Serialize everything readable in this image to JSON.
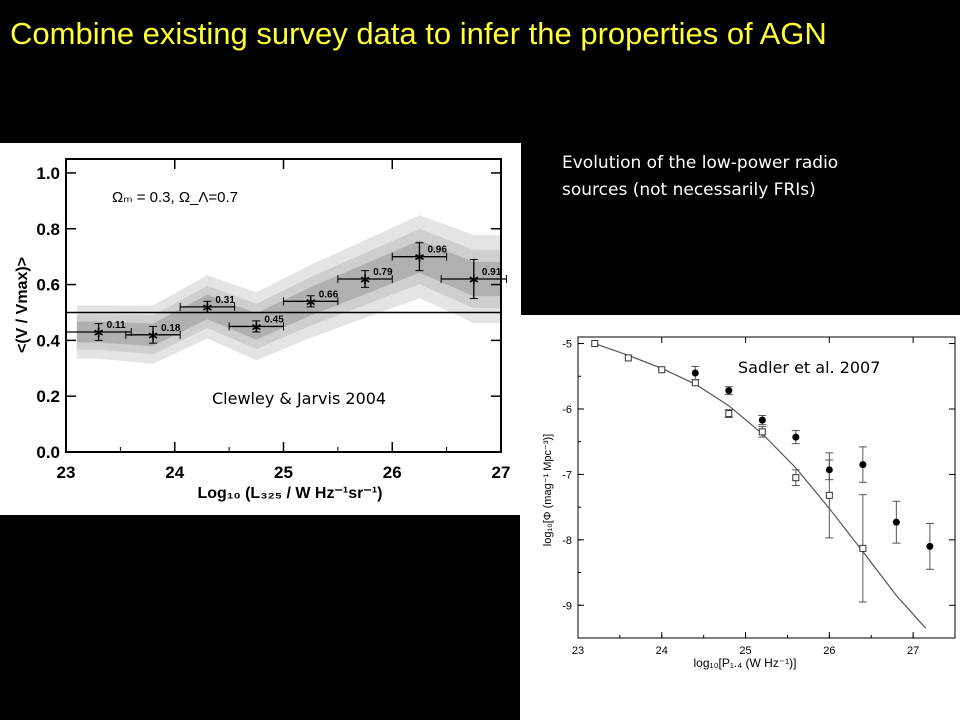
{
  "title": "Combine existing survey data to infer the properties of AGN",
  "description": "Evolution of the low-power radio sources (not necessarily FRIs)",
  "chart_data": [
    {
      "type": "line",
      "id": "left",
      "credit": "Clewley & Jarvis 2004",
      "xlabel": "Log₁₀ (L₃₂₅ / W Hz⁻¹sr⁻¹)",
      "ylabel": "<(V / Vmax)>",
      "annotation": "Ωₘ = 0.3, Ω_Λ=0.7",
      "xlim": [
        23,
        27
      ],
      "ylim": [
        0,
        1.05
      ],
      "xticks": [
        "23",
        "24",
        "25",
        "26",
        "27"
      ],
      "yticks": [
        "0.0",
        "0.2",
        "0.4",
        "0.6",
        "0.8",
        "1.0"
      ],
      "reference_line": 0.5,
      "points": [
        {
          "x": 23.3,
          "y": 0.43,
          "xerr": 0.3,
          "yerr": 0.03,
          "label": "0.11"
        },
        {
          "x": 23.8,
          "y": 0.42,
          "xerr": 0.25,
          "yerr": 0.03,
          "label": "0.18"
        },
        {
          "x": 24.3,
          "y": 0.52,
          "xerr": 0.25,
          "yerr": 0.02,
          "label": "0.31"
        },
        {
          "x": 24.75,
          "y": 0.45,
          "xerr": 0.25,
          "yerr": 0.02,
          "label": "0.45"
        },
        {
          "x": 25.25,
          "y": 0.54,
          "xerr": 0.25,
          "yerr": 0.02,
          "label": "0.66"
        },
        {
          "x": 25.75,
          "y": 0.62,
          "xerr": 0.25,
          "yerr": 0.03,
          "label": "0.79"
        },
        {
          "x": 26.25,
          "y": 0.7,
          "xerr": 0.25,
          "yerr": 0.05,
          "label": "0.96"
        },
        {
          "x": 26.75,
          "y": 0.62,
          "xerr": 0.3,
          "yerr": 0.07,
          "label": "0.91"
        }
      ]
    },
    {
      "type": "scatter",
      "id": "right",
      "credit": "Sadler et al. 2007",
      "xlabel": "log₁₀[P₁.₄ (W Hz⁻¹)]",
      "ylabel": "log₁₀[Φ (mag⁻¹ Mpc⁻³)]",
      "xlim": [
        23,
        27.5
      ],
      "ylim": [
        -9.5,
        -4.9
      ],
      "xticks": [
        "23",
        "24",
        "25",
        "26",
        "27"
      ],
      "yticks": [
        "-5",
        "-6",
        "-7",
        "-8",
        "-9"
      ],
      "series": [
        {
          "marker": "open-square",
          "points": [
            {
              "x": 23.2,
              "y": -5.0,
              "err": 0.02
            },
            {
              "x": 23.6,
              "y": -5.22,
              "err": 0.02
            },
            {
              "x": 24.0,
              "y": -5.4,
              "err": 0.03
            },
            {
              "x": 24.4,
              "y": -5.6,
              "err": 0.04
            },
            {
              "x": 24.8,
              "y": -6.07,
              "err": 0.06
            },
            {
              "x": 25.2,
              "y": -6.35,
              "err": 0.08
            },
            {
              "x": 25.6,
              "y": -7.05,
              "err": 0.12
            },
            {
              "x": 26.0,
              "y": -7.32,
              "err": 0.65
            },
            {
              "x": 26.4,
              "y": -8.13,
              "err": 0.82
            }
          ]
        },
        {
          "marker": "filled-circle",
          "points": [
            {
              "x": 24.4,
              "y": -5.45,
              "err": 0.1
            },
            {
              "x": 24.8,
              "y": -5.72,
              "err": 0.06
            },
            {
              "x": 25.2,
              "y": -6.17,
              "err": 0.07
            },
            {
              "x": 25.6,
              "y": -6.43,
              "err": 0.1
            },
            {
              "x": 26.0,
              "y": -6.93,
              "err": 0.15
            },
            {
              "x": 26.4,
              "y": -6.85,
              "err": 0.27
            },
            {
              "x": 26.8,
              "y": -7.73,
              "err": 0.32
            },
            {
              "x": 27.2,
              "y": -8.1,
              "err": 0.35
            }
          ]
        }
      ],
      "fit_curve": [
        {
          "x": 23.2,
          "y": -5.0
        },
        {
          "x": 23.6,
          "y": -5.18
        },
        {
          "x": 24.0,
          "y": -5.38
        },
        {
          "x": 24.4,
          "y": -5.62
        },
        {
          "x": 24.8,
          "y": -5.95
        },
        {
          "x": 25.2,
          "y": -6.38
        },
        {
          "x": 25.6,
          "y": -6.9
        },
        {
          "x": 26.0,
          "y": -7.52
        },
        {
          "x": 26.4,
          "y": -8.18
        },
        {
          "x": 26.8,
          "y": -8.85
        },
        {
          "x": 27.15,
          "y": -9.35
        }
      ]
    }
  ]
}
